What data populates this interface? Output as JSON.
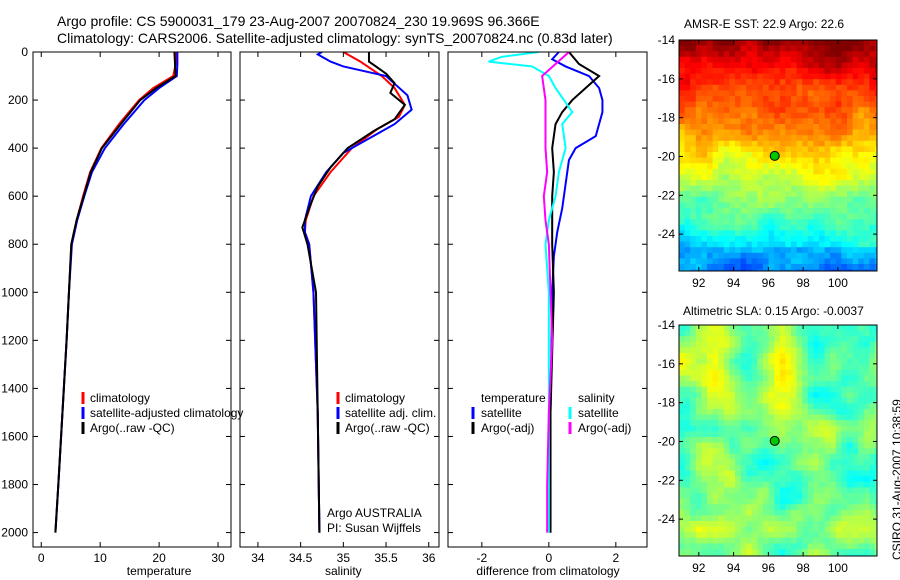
{
  "title": {
    "line1": "Argo profile: CS 5900031_179 23-Aug-2007 20070824_230 19.969S 96.366E",
    "line2": "Climatology: CARS2006. Satellite-adjusted climatology: synTS_20070824.nc (0.83d later)"
  },
  "footer": {
    "credit_line1": "Argo AUSTRALIA",
    "credit_line2": "PI: Susan Wijffels",
    "stamp": "CSIRO 31-Aug-2007 10:38:59"
  },
  "chart_data": [
    {
      "type": "line",
      "xlabel": "temperature",
      "ylabel": "",
      "xlim": [
        -1.4,
        32.2
      ],
      "ylim": [
        0,
        2060
      ],
      "xticks": [
        0,
        10,
        20,
        30
      ],
      "yticks": [
        0,
        200,
        400,
        600,
        800,
        1000,
        1200,
        1400,
        1600,
        1800,
        2000
      ],
      "legend": [
        "climatology",
        "satellite-adjusted climatology",
        "Argo(..raw -QC)"
      ],
      "legend_placement": "lower-left",
      "series": [
        {
          "name": "climatology",
          "color": "#ff0000",
          "points": [
            [
              22.8,
              0
            ],
            [
              22.8,
              50
            ],
            [
              22.4,
              100
            ],
            [
              19,
              150
            ],
            [
              16.6,
              200
            ],
            [
              13.2,
              300
            ],
            [
              10.2,
              400
            ],
            [
              8.3,
              500
            ],
            [
              7.1,
              600
            ],
            [
              6,
              700
            ],
            [
              5.1,
              800
            ],
            [
              4.7,
              1000
            ],
            [
              4.3,
              1200
            ],
            [
              3.6,
              1500
            ],
            [
              2.9,
              1800
            ],
            [
              2.4,
              2000
            ]
          ]
        },
        {
          "name": "satellite-adjusted climatology",
          "color": "#0000ff",
          "points": [
            [
              23.1,
              0
            ],
            [
              23.1,
              50
            ],
            [
              23,
              100
            ],
            [
              20,
              150
            ],
            [
              17.5,
              200
            ],
            [
              14,
              300
            ],
            [
              10.8,
              400
            ],
            [
              8.6,
              500
            ],
            [
              7.3,
              600
            ],
            [
              6.1,
              700
            ],
            [
              5.2,
              800
            ],
            [
              4.7,
              1000
            ],
            [
              4.3,
              1200
            ],
            [
              3.6,
              1500
            ],
            [
              2.9,
              1800
            ],
            [
              2.4,
              2000
            ]
          ]
        },
        {
          "name": "Argo(..raw -QC)",
          "color": "#000000",
          "points": [
            [
              22.6,
              0
            ],
            [
              22.7,
              50
            ],
            [
              22.8,
              100
            ],
            [
              19.5,
              150
            ],
            [
              16.8,
              200
            ],
            [
              13.5,
              300
            ],
            [
              10.3,
              400
            ],
            [
              8.4,
              500
            ],
            [
              7.2,
              600
            ],
            [
              6,
              700
            ],
            [
              5.1,
              800
            ],
            [
              4.7,
              1000
            ],
            [
              4.3,
              1200
            ],
            [
              3.6,
              1500
            ],
            [
              2.9,
              1800
            ],
            [
              2.4,
              2000
            ]
          ]
        }
      ]
    },
    {
      "type": "line",
      "xlabel": "salinity",
      "xlim": [
        33.79,
        36.12
      ],
      "ylim": [
        0,
        2060
      ],
      "xticks": [
        34,
        34.5,
        35,
        35.5,
        36
      ],
      "legend": [
        "climatology",
        "satellite adj. clim.",
        "Argo(..raw -QC)"
      ],
      "legend_placement": "lower-left",
      "series": [
        {
          "name": "climatology",
          "color": "#ff0000",
          "points": [
            [
              35.0,
              0
            ],
            [
              35.2,
              40
            ],
            [
              35.45,
              100
            ],
            [
              35.6,
              150
            ],
            [
              35.72,
              220
            ],
            [
              35.65,
              270
            ],
            [
              35.4,
              320
            ],
            [
              35.1,
              400
            ],
            [
              34.85,
              500
            ],
            [
              34.65,
              600
            ],
            [
              34.56,
              700
            ],
            [
              34.55,
              750
            ],
            [
              34.6,
              800
            ],
            [
              34.65,
              1000
            ],
            [
              34.7,
              1500
            ],
            [
              34.72,
              2000
            ]
          ]
        },
        {
          "name": "satellite adj. clim.",
          "color": "#0000ff",
          "points": [
            [
              34.75,
              0
            ],
            [
              34.7,
              10
            ],
            [
              34.85,
              40
            ],
            [
              35.0,
              60
            ],
            [
              35.5,
              100
            ],
            [
              35.75,
              180
            ],
            [
              35.8,
              240
            ],
            [
              35.6,
              300
            ],
            [
              35.3,
              360
            ],
            [
              35.0,
              420
            ],
            [
              34.8,
              500
            ],
            [
              34.62,
              600
            ],
            [
              34.55,
              700
            ],
            [
              34.55,
              750
            ],
            [
              34.6,
              800
            ],
            [
              34.65,
              1000
            ],
            [
              34.7,
              1500
            ],
            [
              34.72,
              2000
            ]
          ]
        },
        {
          "name": "Argo(..raw -QC)",
          "color": "#000000",
          "points": [
            [
              35.3,
              0
            ],
            [
              35.3,
              40
            ],
            [
              35.5,
              90
            ],
            [
              35.6,
              130
            ],
            [
              35.55,
              170
            ],
            [
              35.72,
              220
            ],
            [
              35.6,
              280
            ],
            [
              35.35,
              330
            ],
            [
              35.05,
              400
            ],
            [
              34.85,
              480
            ],
            [
              34.7,
              560
            ],
            [
              34.6,
              650
            ],
            [
              34.52,
              730
            ],
            [
              34.58,
              800
            ],
            [
              34.68,
              1000
            ],
            [
              34.7,
              1500
            ],
            [
              34.72,
              2000
            ]
          ]
        }
      ]
    },
    {
      "type": "line",
      "xlabel": "difference from climatology",
      "xlim": [
        -3.01,
        2.93
      ],
      "ylim": [
        0,
        2060
      ],
      "xticks": [
        -2,
        0,
        2
      ],
      "legend": [
        "temperature",
        "satellite",
        "Argo(-adj)",
        "salinity",
        "satellite",
        "Argo(-adj)"
      ],
      "legend_placement": "lower-center",
      "series": [
        {
          "name": "temperature satellite",
          "color": "#0000ff",
          "points": [
            [
              0.3,
              0
            ],
            [
              0.1,
              30
            ],
            [
              0.5,
              60
            ],
            [
              1.2,
              100
            ],
            [
              1.5,
              150
            ],
            [
              1.6,
              200
            ],
            [
              1.6,
              250
            ],
            [
              1.5,
              300
            ],
            [
              1.4,
              350
            ],
            [
              0.8,
              400
            ],
            [
              0.6,
              450
            ],
            [
              0.5,
              550
            ],
            [
              0.4,
              650
            ],
            [
              0.25,
              750
            ],
            [
              0.15,
              850
            ],
            [
              0.1,
              1000
            ],
            [
              0.05,
              1500
            ],
            [
              0.05,
              2000
            ]
          ]
        },
        {
          "name": "temperature Argo(-adj)",
          "color": "#000000",
          "points": [
            [
              0.6,
              0
            ],
            [
              0.9,
              50
            ],
            [
              1.5,
              100
            ],
            [
              1.1,
              150
            ],
            [
              0.7,
              200
            ],
            [
              0.4,
              250
            ],
            [
              0.2,
              300
            ],
            [
              0.1,
              400
            ],
            [
              0.15,
              500
            ],
            [
              0.1,
              600
            ],
            [
              0.1,
              800
            ],
            [
              0.15,
              1000
            ],
            [
              0.05,
              1500
            ],
            [
              0.05,
              2000
            ]
          ]
        },
        {
          "name": "salinity satellite",
          "color": "#00ffff",
          "points": [
            [
              -0.3,
              0
            ],
            [
              -1.4,
              20
            ],
            [
              -1.8,
              40
            ],
            [
              -0.5,
              60
            ],
            [
              0,
              100
            ],
            [
              0.2,
              150
            ],
            [
              0.7,
              250
            ],
            [
              0.4,
              300
            ],
            [
              0.5,
              400
            ],
            [
              0.3,
              500
            ],
            [
              0.2,
              600
            ],
            [
              0,
              700
            ],
            [
              -0.1,
              800
            ],
            [
              0,
              1000
            ],
            [
              0,
              1500
            ],
            [
              0,
              2000
            ]
          ]
        },
        {
          "name": "salinity Argo(-adj)",
          "color": "#ff00ff",
          "points": [
            [
              0.6,
              0
            ],
            [
              0.2,
              50
            ],
            [
              -0.2,
              100
            ],
            [
              -0.1,
              200
            ],
            [
              -0.1,
              300
            ],
            [
              -0.1,
              400
            ],
            [
              -0.05,
              500
            ],
            [
              -0.15,
              600
            ],
            [
              -0.1,
              700
            ],
            [
              0,
              800
            ],
            [
              0.1,
              1200
            ],
            [
              0,
              1500
            ],
            [
              -0.05,
              1800
            ],
            [
              -0.05,
              2000
            ]
          ]
        }
      ]
    },
    {
      "type": "heatmap",
      "title": "AMSR-E SST: 22.9 Argo: 22.6",
      "xlim": [
        90.86,
        102.25
      ],
      "ylim": [
        -25.9,
        -14
      ],
      "xticks": [
        92,
        94,
        96,
        98,
        100
      ],
      "yticks": [
        -14,
        -16,
        -18,
        -20,
        -22,
        -24
      ],
      "marker": {
        "lon": 96.366,
        "lat": -19.969
      }
    },
    {
      "type": "heatmap",
      "title": "Altimetric SLA: 0.15 Argo: -0.0037",
      "xlim": [
        90.86,
        102.25
      ],
      "ylim": [
        -25.9,
        -14
      ],
      "xticks": [
        92,
        94,
        96,
        98,
        100
      ],
      "yticks": [
        -14,
        -16,
        -18,
        -20,
        -22,
        -24
      ],
      "marker": {
        "lon": 96.366,
        "lat": -19.969
      }
    }
  ]
}
